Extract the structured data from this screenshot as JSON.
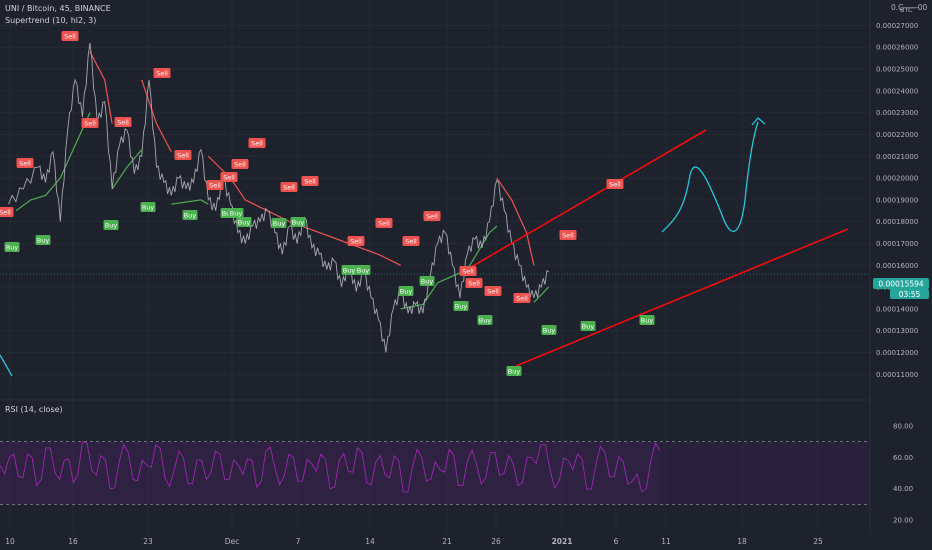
{
  "header": {
    "symbol_line": "UNI / Bitcoin, 45, BINANCE",
    "indicator": "Supertrend (10, hl2, 3)",
    "currency": "BTC",
    "corner_scale": "0.C ̶ ̶ ̶ ̶ ̶ ̶00"
  },
  "rsi_pane": {
    "label": "RSI (14, close)",
    "upper": 70,
    "lower": 30,
    "ticks": [
      "80.00",
      "60.00",
      "40.00",
      "20.00"
    ],
    "band_color": "#7b1fa2"
  },
  "price_label": {
    "value": "0.00015594",
    "countdown": "03:55",
    "color": "#26a69a"
  },
  "colors": {
    "sell": "#ef5350",
    "buy": "#4caf50",
    "supertrend_down": "#ef5350",
    "supertrend_up": "#4caf50",
    "channel": "#f20c0c",
    "projection": "#26c6da",
    "rsi_line": "#9c27b0"
  },
  "chart_data": {
    "type": "line",
    "title": "UNI / Bitcoin, 45, BINANCE",
    "ylabel": "BTC",
    "ylim": [
      0.000105,
      0.000282
    ],
    "y_ticks": [
      "0.00027000",
      "0.00026000",
      "0.00025000",
      "0.00024000",
      "0.00023000",
      "0.00022000",
      "0.00021000",
      "0.00020000",
      "0.00019000",
      "0.00018000",
      "0.00017000",
      "0.00016000",
      "0.00015000",
      "0.00014000",
      "0.00013000",
      "0.00012000",
      "0.00011000"
    ],
    "x_ticks": [
      "10",
      "16",
      "23",
      "Dec",
      "7",
      "14",
      "21",
      "26",
      "2021",
      "6",
      "11",
      "18",
      "25"
    ],
    "price_series": [
      {
        "x": 0,
        "y": 0.000188
      },
      {
        "x": 2,
        "y": 0.000195
      },
      {
        "x": 4,
        "y": 0.000205
      },
      {
        "x": 5,
        "y": 0.000198
      },
      {
        "x": 6,
        "y": 0.000212
      },
      {
        "x": 7,
        "y": 0.00018
      },
      {
        "x": 8,
        "y": 0.000222
      },
      {
        "x": 9,
        "y": 0.000245
      },
      {
        "x": 10,
        "y": 0.000228
      },
      {
        "x": 11,
        "y": 0.000262
      },
      {
        "x": 12,
        "y": 0.000225
      },
      {
        "x": 13,
        "y": 0.000235
      },
      {
        "x": 14,
        "y": 0.000195
      },
      {
        "x": 15,
        "y": 0.000215
      },
      {
        "x": 16,
        "y": 0.000222
      },
      {
        "x": 17,
        "y": 0.000202
      },
      {
        "x": 18,
        "y": 0.00021
      },
      {
        "x": 19,
        "y": 0.000245
      },
      {
        "x": 20,
        "y": 0.000205
      },
      {
        "x": 21,
        "y": 0.000198
      },
      {
        "x": 22,
        "y": 0.000192
      },
      {
        "x": 23,
        "y": 0.0002
      },
      {
        "x": 24,
        "y": 0.000195
      },
      {
        "x": 25,
        "y": 0.000198
      },
      {
        "x": 26,
        "y": 0.000213
      },
      {
        "x": 27,
        "y": 0.00019
      },
      {
        "x": 28,
        "y": 0.000185
      },
      {
        "x": 29,
        "y": 0.0002
      },
      {
        "x": 30,
        "y": 0.000188
      },
      {
        "x": 31,
        "y": 0.000175
      },
      {
        "x": 32,
        "y": 0.00017
      },
      {
        "x": 33,
        "y": 0.000178
      },
      {
        "x": 34,
        "y": 0.00018
      },
      {
        "x": 35,
        "y": 0.000185
      },
      {
        "x": 36,
        "y": 0.000175
      },
      {
        "x": 37,
        "y": 0.000165
      },
      {
        "x": 38,
        "y": 0.000178
      },
      {
        "x": 39,
        "y": 0.00017
      },
      {
        "x": 40,
        "y": 0.000182
      },
      {
        "x": 41,
        "y": 0.000168
      },
      {
        "x": 42,
        "y": 0.000165
      },
      {
        "x": 43,
        "y": 0.000158
      },
      {
        "x": 44,
        "y": 0.000162
      },
      {
        "x": 45,
        "y": 0.00015
      },
      {
        "x": 46,
        "y": 0.00016
      },
      {
        "x": 47,
        "y": 0.000148
      },
      {
        "x": 48,
        "y": 0.000157
      },
      {
        "x": 49,
        "y": 0.000145
      },
      {
        "x": 50,
        "y": 0.000135
      },
      {
        "x": 51,
        "y": 0.00012
      },
      {
        "x": 52,
        "y": 0.00014
      },
      {
        "x": 53,
        "y": 0.000148
      },
      {
        "x": 54,
        "y": 0.000138
      },
      {
        "x": 55,
        "y": 0.000142
      },
      {
        "x": 56,
        "y": 0.000138
      },
      {
        "x": 57,
        "y": 0.000155
      },
      {
        "x": 58,
        "y": 0.00017
      },
      {
        "x": 59,
        "y": 0.000175
      },
      {
        "x": 60,
        "y": 0.00016
      },
      {
        "x": 61,
        "y": 0.000145
      },
      {
        "x": 62,
        "y": 0.000165
      },
      {
        "x": 63,
        "y": 0.000172
      },
      {
        "x": 64,
        "y": 0.000168
      },
      {
        "x": 65,
        "y": 0.00018
      },
      {
        "x": 66,
        "y": 0.000199
      },
      {
        "x": 67,
        "y": 0.000185
      },
      {
        "x": 68,
        "y": 0.00017
      },
      {
        "x": 69,
        "y": 0.00016
      },
      {
        "x": 70,
        "y": 0.00015
      },
      {
        "x": 71,
        "y": 0.000145
      },
      {
        "x": 72,
        "y": 0.00015
      },
      {
        "x": 73,
        "y": 0.000157
      }
    ],
    "supertrend_segments": [
      {
        "trend": "up",
        "points": [
          [
            1,
            0.000185
          ],
          [
            3,
            0.00019
          ],
          [
            5,
            0.000192
          ],
          [
            7,
            0.0002
          ],
          [
            9,
            0.000215
          ],
          [
            11,
            0.00023
          ]
        ]
      },
      {
        "trend": "down",
        "points": [
          [
            11,
            0.000258
          ],
          [
            13,
            0.000245
          ],
          [
            14,
            0.000225
          ]
        ]
      },
      {
        "trend": "up",
        "points": [
          [
            14,
            0.000195
          ],
          [
            16,
            0.000205
          ],
          [
            18,
            0.000213
          ]
        ]
      },
      {
        "trend": "down",
        "points": [
          [
            18,
            0.000245
          ],
          [
            20,
            0.000225
          ],
          [
            22,
            0.000212
          ]
        ]
      },
      {
        "trend": "up",
        "points": [
          [
            22,
            0.000188
          ],
          [
            26,
            0.00019
          ],
          [
            27,
            0.000188
          ]
        ]
      },
      {
        "trend": "down",
        "points": [
          [
            27,
            0.00021
          ],
          [
            30,
            0.0002
          ],
          [
            32,
            0.00019
          ],
          [
            35,
            0.000185
          ],
          [
            38,
            0.00018
          ],
          [
            42,
            0.000175
          ],
          [
            46,
            0.00017
          ],
          [
            50,
            0.000165
          ],
          [
            53,
            0.00016
          ]
        ]
      },
      {
        "trend": "up",
        "points": [
          [
            53,
            0.00014
          ],
          [
            56,
            0.000142
          ],
          [
            58,
            0.000152
          ],
          [
            62,
            0.000158
          ],
          [
            65,
            0.000175
          ],
          [
            66,
            0.000178
          ]
        ]
      },
      {
        "trend": "down",
        "points": [
          [
            66,
            0.0002
          ],
          [
            68,
            0.00019
          ],
          [
            70,
            0.000175
          ],
          [
            71,
            0.00016
          ]
        ]
      },
      {
        "trend": "up",
        "points": [
          [
            71,
            0.000143
          ],
          [
            73,
            0.00015
          ]
        ]
      }
    ],
    "signals": [
      {
        "type": "Sell",
        "x": 1,
        "y": 0.000198
      },
      {
        "type": "Buy",
        "x": 1.5,
        "y": 0.000187
      },
      {
        "type": "Sell",
        "x": 3.5,
        "y": 0.000212
      },
      {
        "type": "Buy",
        "x": 5,
        "y": 0.00019
      },
      {
        "type": "Sell",
        "x": 9,
        "y": 0.000268
      },
      {
        "type": "Sell",
        "x": 11,
        "y": 0.00023
      },
      {
        "type": "Buy",
        "x": 12,
        "y": 0.000195
      },
      {
        "type": "Sell",
        "x": 13,
        "y": 0.00023
      },
      {
        "type": "Buy",
        "x": 15.5,
        "y": 0.0002
      },
      {
        "type": "Sell",
        "x": 18,
        "y": 0.000258
      },
      {
        "type": "Buy",
        "x": 20,
        "y": 0.000192
      },
      {
        "type": "Buy",
        "x": 24,
        "y": 0.000192
      },
      {
        "type": "Sell",
        "x": 25,
        "y": 0.000213
      },
      {
        "type": "Sell",
        "x": 26.5,
        "y": 0.00021
      },
      {
        "type": "Buy",
        "x": 27.5,
        "y": 0.00019
      },
      {
        "type": "Sell",
        "x": 29.5,
        "y": 0.000225
      },
      {
        "type": "Sell",
        "x": 31,
        "y": 0.00021
      },
      {
        "type": "Buy",
        "x": 33,
        "y": 0.00019
      },
      {
        "type": "Sell",
        "x": 34,
        "y": 0.000205
      },
      {
        "type": "Buy",
        "x": 36.5,
        "y": 0.000188
      },
      {
        "type": "Sell",
        "x": 38.5,
        "y": 0.000205
      },
      {
        "type": "Sell",
        "x": 41,
        "y": 0.000198
      },
      {
        "type": "Buy",
        "x": 42.5,
        "y": 0.000188
      },
      {
        "type": "Sell",
        "x": 46,
        "y": 0.00018
      },
      {
        "type": "Buy",
        "x": 47,
        "y": 0.000165
      },
      {
        "type": "Buy",
        "x": 48.5,
        "y": 0.000165
      },
      {
        "type": "Sell",
        "x": 49,
        "y": 0.000178
      },
      {
        "type": "Sell",
        "x": 51.5,
        "y": 0.00018
      },
      {
        "type": "Buy",
        "x": 53,
        "y": 0.00016
      },
      {
        "type": "Sell",
        "x": 55,
        "y": 0.000182
      },
      {
        "type": "Buy",
        "x": 56,
        "y": 0.000158
      },
      {
        "type": "Buy",
        "x": 57.5,
        "y": 0.00015
      },
      {
        "type": "Sell",
        "x": 58.5,
        "y": 0.000162
      },
      {
        "type": "Buy",
        "x": 59.5,
        "y": 0.00014
      },
      {
        "type": "Sell",
        "x": 61,
        "y": 0.000158
      },
      {
        "type": "Buy",
        "x": 62,
        "y": 0.00014
      },
      {
        "type": "Sell",
        "x": 64,
        "y": 0.000155
      },
      {
        "type": "Buy",
        "x": 65.5,
        "y": 0.000135
      },
      {
        "type": "Buy",
        "x": 67,
        "y": 0.000118
      },
      {
        "type": "Sell",
        "x": 69.5,
        "y": 0.000178
      },
      {
        "type": "Buy",
        "x": 71.5,
        "y": 0.00014
      },
      {
        "type": "Sell",
        "x": 74,
        "y": 0.0002
      },
      {
        "type": "Buy",
        "x": 78,
        "y": 0.00014
      }
    ],
    "channel_lines": [
      {
        "name": "upper",
        "from": [
          56,
          0.000162
        ],
        "to": [
          90,
          0.000225
        ]
      },
      {
        "name": "lower",
        "from": [
          62,
          0.000118
        ],
        "to": [
          108,
          0.000179
        ]
      }
    ],
    "projection_path": [
      [
        78,
        0.000163
      ],
      [
        81,
        0.000198
      ],
      [
        86,
        0.000178
      ],
      [
        89,
        0.00021
      ],
      [
        91,
        0.000229
      ]
    ],
    "rsi_series": [
      55,
      60,
      48,
      62,
      42,
      66,
      50,
      58,
      44,
      70,
      52,
      61,
      40,
      57,
      63,
      45,
      55,
      68,
      47,
      52,
      60,
      43,
      58,
      50,
      62,
      46,
      55,
      59,
      41,
      64,
      53,
      48,
      60,
      45,
      56,
      62,
      40,
      58,
      51,
      66,
      44,
      57,
      49,
      61,
      38,
      54,
      60,
      46,
      52,
      65,
      42,
      58,
      55,
      47,
      63,
      50,
      56,
      44,
      60,
      68,
      52,
      45,
      58,
      62,
      40,
      55,
      63,
      48,
      57,
      45,
      38,
      58,
      64
    ]
  }
}
